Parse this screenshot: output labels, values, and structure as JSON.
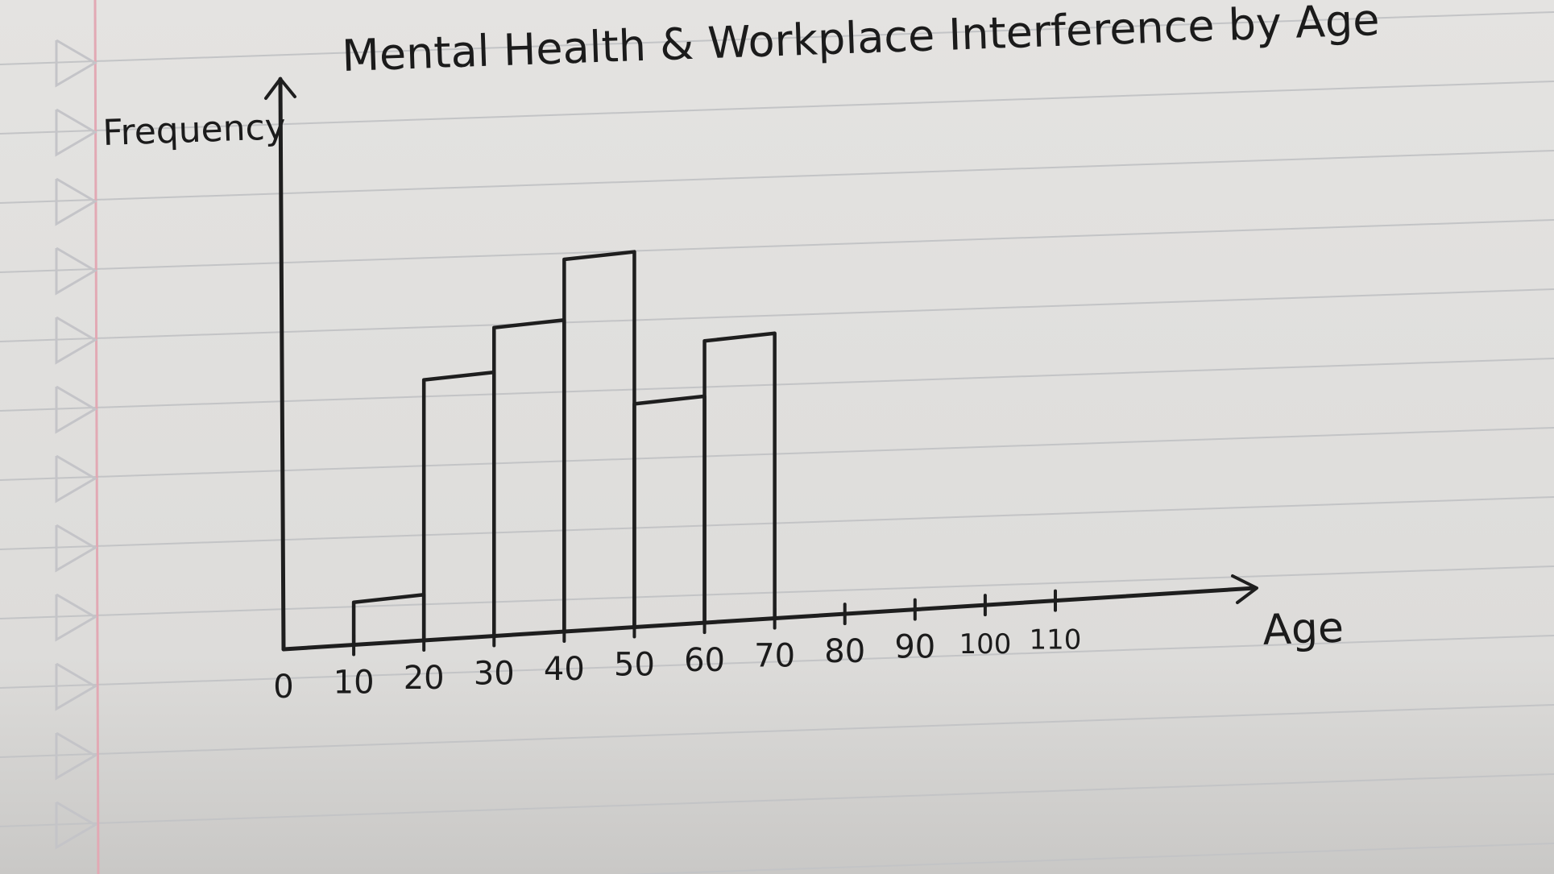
{
  "chart_data": {
    "type": "bar",
    "title": "Mental Health & Workplace Interference by Age",
    "xlabel": "Age",
    "ylabel": "Frequency",
    "bins": [
      {
        "from": 10,
        "to": 20,
        "value": 0.8
      },
      {
        "from": 20,
        "to": 30,
        "value": 4.9
      },
      {
        "from": 30,
        "to": 40,
        "value": 5.8
      },
      {
        "from": 40,
        "to": 50,
        "value": 7.0
      },
      {
        "from": 50,
        "to": 60,
        "value": 4.2
      },
      {
        "from": 60,
        "to": 70,
        "value": 5.3
      }
    ],
    "x_ticks": [
      "0",
      "10",
      "20",
      "30",
      "40",
      "50",
      "60",
      "70",
      "80",
      "90",
      "100",
      "110"
    ],
    "xlim": [
      0,
      115
    ],
    "ylim": [
      0,
      10
    ],
    "grid": false,
    "legend": "none"
  }
}
